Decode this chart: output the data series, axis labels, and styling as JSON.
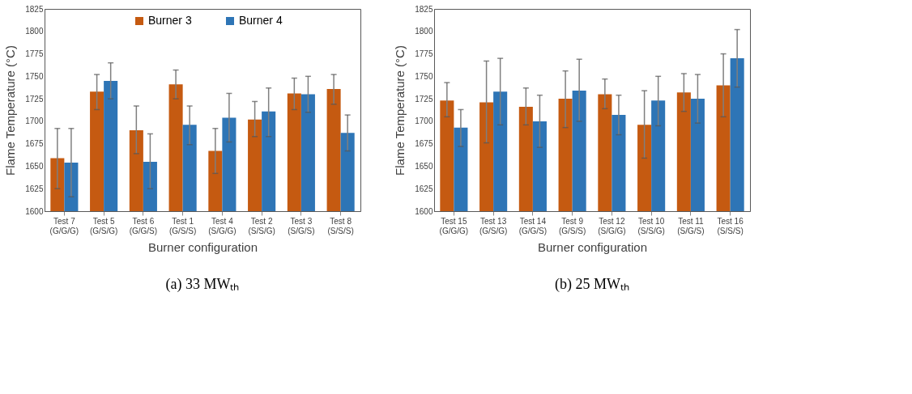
{
  "chart_data": [
    {
      "type": "bar",
      "xlabel": "Burner configuration",
      "ylabel": "Flame Temperature (°C)",
      "categories": [
        "Test 7\n(G/G/G)",
        "Test 5\n(G/S/G)",
        "Test 6\n(G/G/S)",
        "Test 1\n(G/S/S)",
        "Test 4\n(S/G/G)",
        "Test 2\n(S/S/G)",
        "Test 3\n(S/G/S)",
        "Test 8\n(S/S/S)"
      ],
      "series": [
        {
          "name": "Burner 3",
          "color": "#c55a11",
          "values": [
            1659,
            1733,
            1690,
            1741,
            1667,
            1702,
            1731,
            1736
          ],
          "errors": [
            [
              1625,
              1692
            ],
            [
              1713,
              1752
            ],
            [
              1664,
              1717
            ],
            [
              1725,
              1757
            ],
            [
              1642,
              1692
            ],
            [
              1683,
              1722
            ],
            [
              1713,
              1748
            ],
            [
              1719,
              1752
            ]
          ]
        },
        {
          "name": "Burner 4",
          "color": "#2e75b6",
          "values": [
            1654,
            1745,
            1655,
            1696,
            1704,
            1711,
            1730,
            1687
          ],
          "errors": [
            [
              1616,
              1692
            ],
            [
              1725,
              1765
            ],
            [
              1625,
              1686
            ],
            [
              1674,
              1717
            ],
            [
              1677,
              1731
            ],
            [
              1683,
              1737
            ],
            [
              1710,
              1750
            ],
            [
              1667,
              1707
            ]
          ]
        }
      ],
      "ylim": [
        1600,
        1825
      ],
      "yticks": [
        1600,
        1625,
        1650,
        1675,
        1700,
        1725,
        1750,
        1775,
        1800,
        1825
      ],
      "grid": false,
      "legend": "top",
      "annotations": [
        "(a) 33 MWₜₕ"
      ]
    },
    {
      "type": "bar",
      "xlabel": "Burner configuration",
      "ylabel": "Flame Temperature (°C)",
      "categories": [
        "Test 15\n(G/G/G)",
        "Test 13\n(G/S/G)",
        "Test 14\n(G/G/S)",
        "Test 9\n(G/S/S)",
        "Test 12\n(S/G/G)",
        "Test 10\n(S/S/G)",
        "Test 11\n(S/G/S)",
        "Test 16\n(S/S/S)"
      ],
      "series": [
        {
          "name": "Burner 3",
          "color": "#c55a11",
          "values": [
            1723,
            1721,
            1716,
            1725,
            1730,
            1696,
            1732,
            1740
          ],
          "errors": [
            [
              1705,
              1743
            ],
            [
              1676,
              1767
            ],
            [
              1696,
              1737
            ],
            [
              1693,
              1756
            ],
            [
              1714,
              1747
            ],
            [
              1659,
              1734
            ],
            [
              1711,
              1753
            ],
            [
              1705,
              1775
            ]
          ]
        },
        {
          "name": "Burner 4",
          "color": "#2e75b6",
          "values": [
            1693,
            1733,
            1700,
            1734,
            1707,
            1723,
            1725,
            1770
          ],
          "errors": [
            [
              1672,
              1713
            ],
            [
              1696,
              1770
            ],
            [
              1671,
              1729
            ],
            [
              1700,
              1769
            ],
            [
              1685,
              1729
            ],
            [
              1695,
              1750
            ],
            [
              1698,
              1752
            ],
            [
              1738,
              1802
            ]
          ]
        }
      ],
      "ylim": [
        1600,
        1825
      ],
      "yticks": [
        1600,
        1625,
        1650,
        1675,
        1700,
        1725,
        1750,
        1775,
        1800,
        1825
      ],
      "grid": false,
      "legend": "top",
      "annotations": [
        "(b) 25 MWₜₕ"
      ]
    }
  ]
}
